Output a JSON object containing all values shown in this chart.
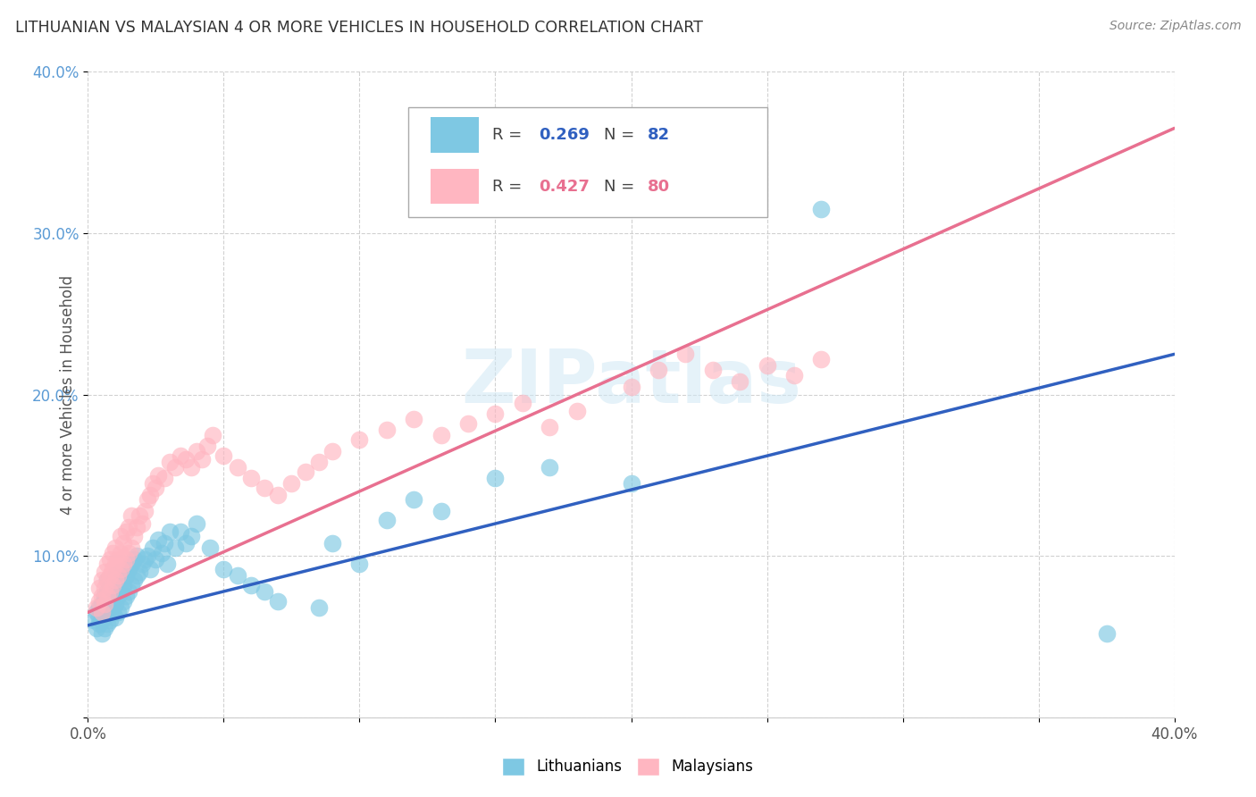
{
  "title": "LITHUANIAN VS MALAYSIAN 4 OR MORE VEHICLES IN HOUSEHOLD CORRELATION CHART",
  "source": "Source: ZipAtlas.com",
  "ylabel": "4 or more Vehicles in Household",
  "xlim": [
    0.0,
    0.4
  ],
  "ylim": [
    0.0,
    0.4
  ],
  "xticks": [
    0.0,
    0.4
  ],
  "xticklabels": [
    "0.0%",
    "40.0%"
  ],
  "yticks": [
    0.0,
    0.1,
    0.2,
    0.3,
    0.4
  ],
  "yticklabels": [
    "",
    "10.0%",
    "20.0%",
    "30.0%",
    "40.0%"
  ],
  "color_lith": "#7ec8e3",
  "color_malay": "#ffb6c1",
  "color_lith_line": "#3060c0",
  "color_malay_line": "#e87090",
  "R_lith": 0.269,
  "N_lith": 82,
  "R_malay": 0.427,
  "N_malay": 80,
  "watermark": "ZIPatlas",
  "lith_intercept": 0.057,
  "lith_slope": 0.42,
  "malay_intercept": 0.065,
  "malay_slope": 0.75,
  "lith_x": [
    0.002,
    0.003,
    0.003,
    0.004,
    0.004,
    0.004,
    0.005,
    0.005,
    0.005,
    0.005,
    0.006,
    0.006,
    0.006,
    0.006,
    0.007,
    0.007,
    0.007,
    0.007,
    0.007,
    0.008,
    0.008,
    0.008,
    0.008,
    0.009,
    0.009,
    0.009,
    0.01,
    0.01,
    0.01,
    0.01,
    0.011,
    0.011,
    0.011,
    0.012,
    0.012,
    0.012,
    0.013,
    0.013,
    0.014,
    0.014,
    0.015,
    0.015,
    0.016,
    0.016,
    0.017,
    0.017,
    0.018,
    0.018,
    0.019,
    0.02,
    0.021,
    0.022,
    0.023,
    0.024,
    0.025,
    0.026,
    0.027,
    0.028,
    0.029,
    0.03,
    0.032,
    0.034,
    0.036,
    0.038,
    0.04,
    0.045,
    0.05,
    0.055,
    0.06,
    0.065,
    0.07,
    0.085,
    0.09,
    0.1,
    0.11,
    0.12,
    0.13,
    0.15,
    0.17,
    0.2,
    0.27,
    0.375
  ],
  "lith_y": [
    0.06,
    0.055,
    0.065,
    0.058,
    0.062,
    0.068,
    0.052,
    0.06,
    0.065,
    0.07,
    0.055,
    0.062,
    0.068,
    0.075,
    0.058,
    0.065,
    0.07,
    0.078,
    0.085,
    0.06,
    0.068,
    0.075,
    0.082,
    0.065,
    0.072,
    0.08,
    0.062,
    0.07,
    0.078,
    0.088,
    0.065,
    0.075,
    0.085,
    0.068,
    0.078,
    0.09,
    0.072,
    0.082,
    0.075,
    0.088,
    0.078,
    0.092,
    0.082,
    0.095,
    0.085,
    0.098,
    0.088,
    0.1,
    0.09,
    0.095,
    0.098,
    0.1,
    0.092,
    0.105,
    0.098,
    0.11,
    0.102,
    0.108,
    0.095,
    0.115,
    0.105,
    0.115,
    0.108,
    0.112,
    0.12,
    0.105,
    0.092,
    0.088,
    0.082,
    0.078,
    0.072,
    0.068,
    0.108,
    0.095,
    0.122,
    0.135,
    0.128,
    0.148,
    0.155,
    0.145,
    0.315,
    0.052
  ],
  "malay_x": [
    0.003,
    0.004,
    0.004,
    0.005,
    0.005,
    0.005,
    0.006,
    0.006,
    0.006,
    0.007,
    0.007,
    0.007,
    0.008,
    0.008,
    0.008,
    0.009,
    0.009,
    0.009,
    0.01,
    0.01,
    0.01,
    0.011,
    0.011,
    0.012,
    0.012,
    0.012,
    0.013,
    0.013,
    0.014,
    0.014,
    0.015,
    0.015,
    0.016,
    0.016,
    0.017,
    0.018,
    0.019,
    0.02,
    0.021,
    0.022,
    0.023,
    0.024,
    0.025,
    0.026,
    0.028,
    0.03,
    0.032,
    0.034,
    0.036,
    0.038,
    0.04,
    0.042,
    0.044,
    0.046,
    0.05,
    0.055,
    0.06,
    0.065,
    0.07,
    0.075,
    0.08,
    0.085,
    0.09,
    0.1,
    0.11,
    0.12,
    0.13,
    0.14,
    0.15,
    0.16,
    0.17,
    0.18,
    0.2,
    0.21,
    0.22,
    0.23,
    0.24,
    0.25,
    0.26,
    0.27
  ],
  "malay_y": [
    0.068,
    0.072,
    0.08,
    0.065,
    0.075,
    0.085,
    0.07,
    0.08,
    0.09,
    0.075,
    0.085,
    0.095,
    0.078,
    0.088,
    0.098,
    0.082,
    0.092,
    0.102,
    0.085,
    0.095,
    0.105,
    0.088,
    0.098,
    0.092,
    0.102,
    0.112,
    0.095,
    0.108,
    0.098,
    0.115,
    0.102,
    0.118,
    0.105,
    0.125,
    0.112,
    0.118,
    0.125,
    0.12,
    0.128,
    0.135,
    0.138,
    0.145,
    0.142,
    0.15,
    0.148,
    0.158,
    0.155,
    0.162,
    0.16,
    0.155,
    0.165,
    0.16,
    0.168,
    0.175,
    0.162,
    0.155,
    0.148,
    0.142,
    0.138,
    0.145,
    0.152,
    0.158,
    0.165,
    0.172,
    0.178,
    0.185,
    0.175,
    0.182,
    0.188,
    0.195,
    0.18,
    0.19,
    0.205,
    0.215,
    0.225,
    0.215,
    0.208,
    0.218,
    0.212,
    0.222
  ]
}
